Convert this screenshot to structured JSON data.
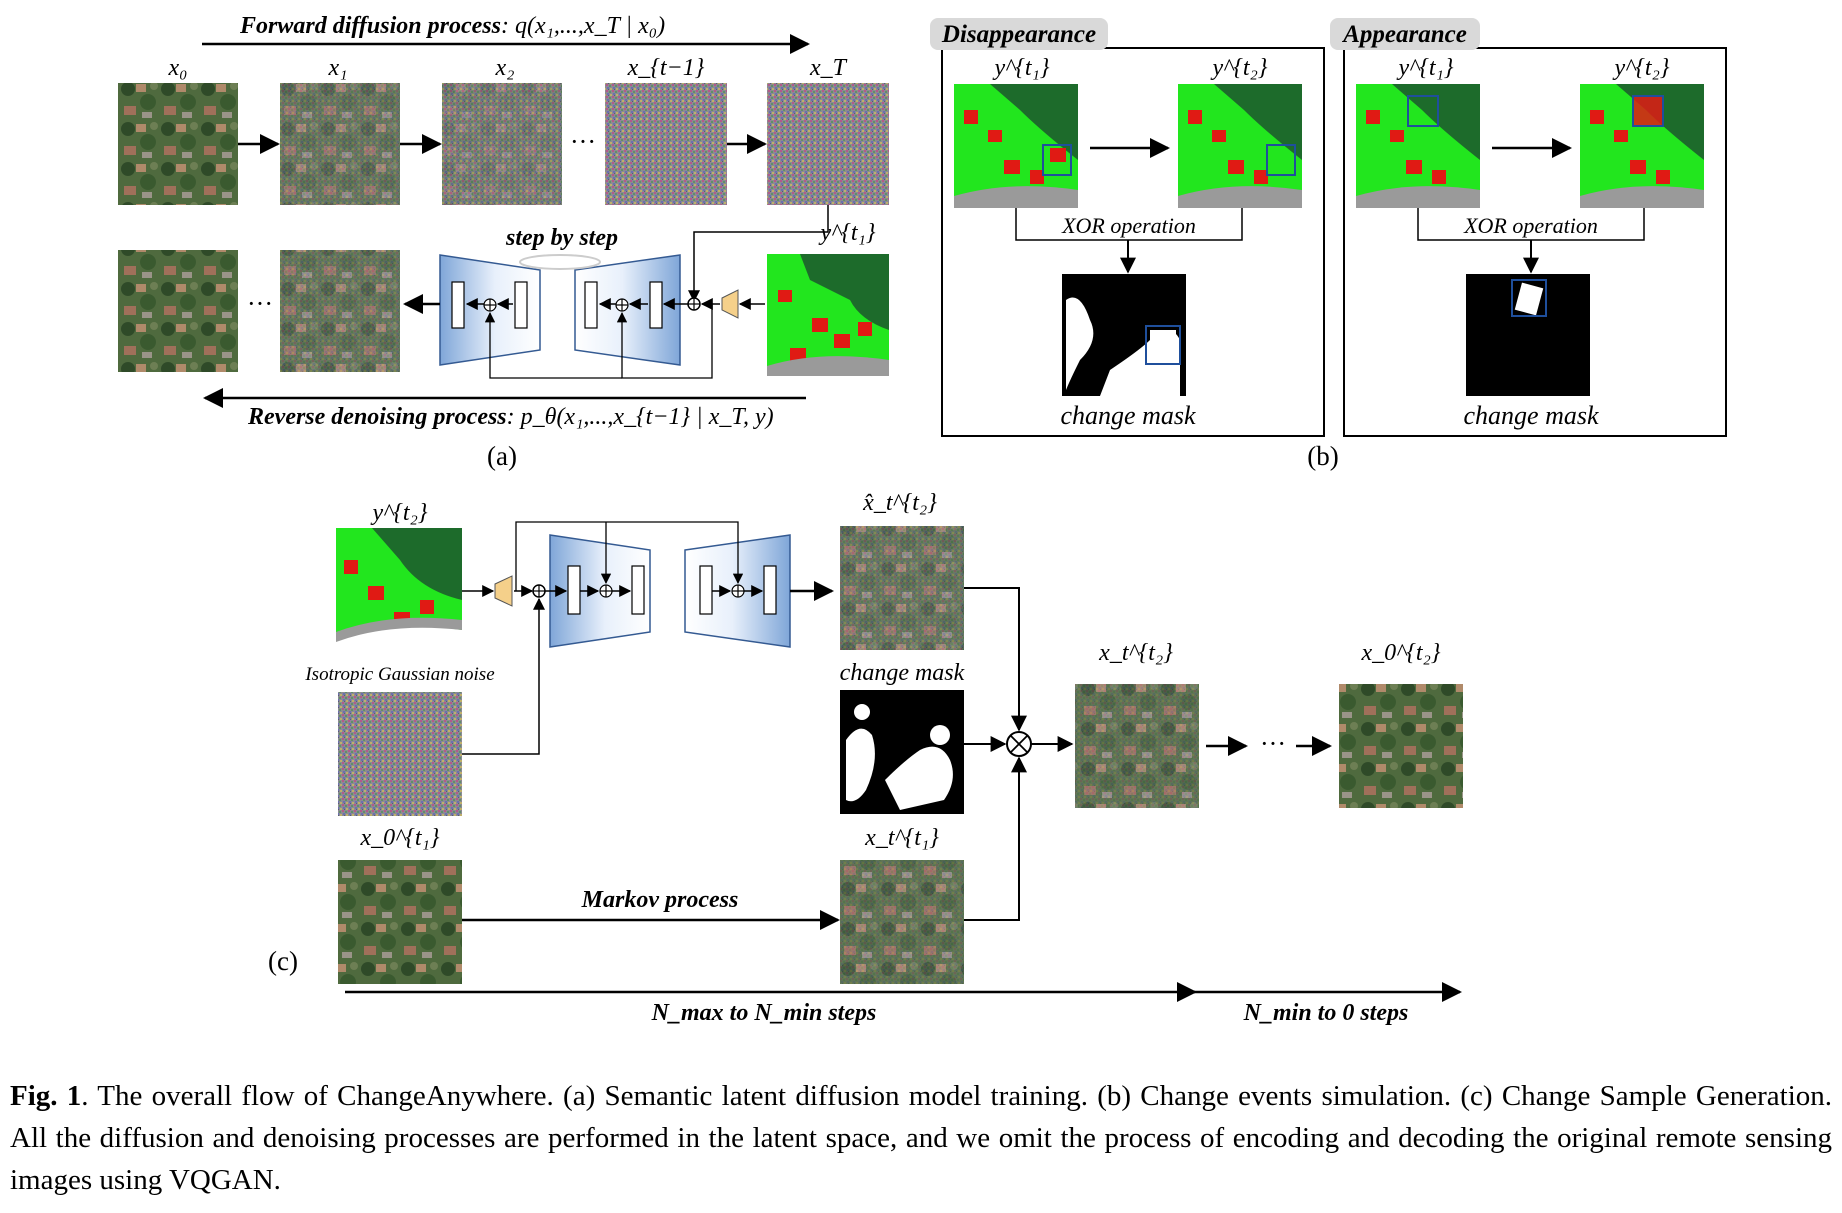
{
  "panel_a": {
    "forward_prefix": "Forward diffusion process",
    "forward_formula": ": q(x₁,...,x_T | x₀)",
    "x_labels": [
      "x₀",
      "x₁",
      "x₂",
      "x_{t−1}",
      "x_T"
    ],
    "ellipsis": "···",
    "y_label": "y^{t₁}",
    "step_label": "step by step",
    "reverse_prefix": "Reverse denoising process",
    "reverse_formula": ": p_θ(x₁,...,x_{t−1} | x_T, y)",
    "panel_label": "(a)"
  },
  "panel_b": {
    "left_title": "Disappearance",
    "right_title": "Appearance",
    "y1_label": "y^{t₁}",
    "y2_label": "y^{t₂}",
    "xor_label": "XOR operation",
    "mask_label": "change mask",
    "panel_label": "(b)"
  },
  "panel_c": {
    "y2_label": "y^{t₂}",
    "noise_label": "Isotropic Gaussian noise",
    "xhat_label": "x̂_t^{t₂}",
    "change_mask_label": "change mask",
    "xt2_label": "x_t^{t₂}",
    "x02_label": "x_0^{t₂}",
    "x01_label": "x_0^{t₁}",
    "xt1_label": "x_t^{t₁}",
    "markov_label": "Markov process",
    "panel_label": "(c)",
    "steps_1": "N_max to N_min steps",
    "steps_2": "N_min to 0 steps"
  },
  "caption": {
    "fig_label": "Fig. 1",
    "text": ".   The overall flow of ChangeAnywhere. (a) Semantic latent diffusion model training. (b) Change events simulation. (c) Change Sample Generation. All the diffusion and denoising processes are performed in the latent space, and we omit the process of encoding and decoding the original remote sensing images using VQGAN."
  },
  "colors": {
    "semantic_green": "#22e61e",
    "semantic_dark_green": "#1d6b2b",
    "semantic_red": "#e01a14",
    "semantic_gray": "#9a9a9a",
    "unet_blue": "#8fb3de",
    "encoder_yellow": "#f5d08a",
    "box_blue": "#1f4f9c"
  }
}
